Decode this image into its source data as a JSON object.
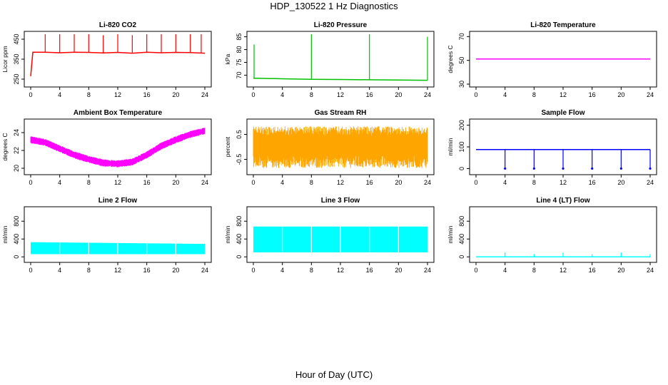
{
  "title": "HDP_130522  1 Hz Diagnostics",
  "xlabel": "Hour of Day (UTC)",
  "chart_data": [
    {
      "type": "line",
      "title": "Li-820 CO2",
      "ylabel": "Licor ppm",
      "color": "#ff0000",
      "xlim": [
        0,
        24
      ],
      "ylim": [
        225,
        475
      ],
      "xticks": [
        0,
        4,
        8,
        12,
        16,
        20,
        24
      ],
      "yticks": [
        250,
        350,
        450
      ],
      "series": [
        {
          "x": [
            0,
            0.3,
            2,
            4,
            6,
            8,
            10,
            12,
            14,
            16,
            18,
            20,
            22,
            24
          ],
          "values": [
            265,
            385,
            385,
            382,
            385,
            384,
            381,
            384,
            380,
            385,
            382,
            384,
            383,
            380
          ]
        }
      ],
      "spikes": {
        "x": [
          2,
          4,
          6,
          8,
          10,
          12,
          14,
          16,
          18,
          20,
          22,
          23.5
        ],
        "values": [
          475,
          475,
          475,
          475,
          470,
          475,
          470,
          475,
          475,
          475,
          475,
          475
        ]
      }
    },
    {
      "type": "line",
      "title": "Li-820 Pressure",
      "ylabel": "kPa",
      "color": "#00c000",
      "xlim": [
        0,
        24
      ],
      "ylim": [
        66.5,
        86
      ],
      "xticks": [
        0,
        4,
        8,
        12,
        16,
        20,
        24
      ],
      "yticks": [
        70,
        75,
        80,
        85
      ],
      "series": [
        {
          "x": [
            0,
            0.5,
            4,
            8,
            12,
            16,
            20,
            24
          ],
          "values": [
            68.8,
            68.8,
            68.6,
            68.4,
            68.3,
            68.2,
            68.1,
            68.0
          ]
        }
      ],
      "spikes": {
        "x": [
          0.1,
          8,
          16,
          24
        ],
        "values": [
          82,
          86,
          86,
          85
        ]
      }
    },
    {
      "type": "line",
      "title": "Li-820 Temperature",
      "ylabel": "degrees C",
      "color": "#ff00ff",
      "xlim": [
        0,
        24
      ],
      "ylim": [
        30,
        72
      ],
      "xticks": [
        0,
        4,
        8,
        12,
        16,
        20,
        24
      ],
      "yticks": [
        30,
        50,
        70
      ],
      "series": [
        {
          "x": [
            0,
            24
          ],
          "values": [
            51.2,
            51.2
          ]
        }
      ]
    },
    {
      "type": "area",
      "title": "Ambient Box Temperature",
      "ylabel": "degrees C",
      "color": "#ff00ff",
      "xlim": [
        0,
        24
      ],
      "ylim": [
        19.6,
        25.2
      ],
      "xticks": [
        0,
        4,
        8,
        12,
        16,
        20,
        24
      ],
      "yticks": [
        20,
        22,
        24
      ],
      "series": [
        {
          "x": [
            0,
            2,
            4,
            6,
            8,
            10,
            12,
            14,
            16,
            18,
            20,
            22,
            24
          ],
          "values": [
            23.2,
            22.9,
            22.2,
            21.5,
            21.0,
            20.6,
            20.5,
            20.7,
            21.5,
            22.5,
            23.2,
            23.8,
            24.2
          ]
        }
      ],
      "band": 0.8
    },
    {
      "type": "area",
      "title": "Gas Stream RH",
      "ylabel": "percent",
      "color": "#ffa500",
      "xlim": [
        0,
        24
      ],
      "ylim": [
        -1.0,
        1.0
      ],
      "xticks": [
        0,
        4,
        8,
        12,
        16,
        20,
        24
      ],
      "yticks": [
        -0.5,
        0.5
      ],
      "series": [
        {
          "x": [
            0,
            24
          ],
          "values": [
            0.0,
            0.0
          ]
        }
      ],
      "band": [
        -0.85,
        0.82
      ]
    },
    {
      "type": "line",
      "title": "Sample Flow",
      "ylabel": "ml/min",
      "color": "#0000ff",
      "xlim": [
        0,
        24
      ],
      "ylim": [
        -15,
        215
      ],
      "xticks": [
        0,
        4,
        8,
        12,
        16,
        20,
        24
      ],
      "yticks": [
        0,
        100,
        200
      ],
      "series": [
        {
          "x": [
            0,
            24
          ],
          "values": [
            88,
            88
          ]
        }
      ],
      "dips": {
        "x": [
          4,
          8,
          12,
          16,
          20,
          24
        ],
        "values": [
          0,
          0,
          0,
          0,
          0,
          0
        ]
      }
    },
    {
      "type": "area",
      "title": "Line 2 Flow",
      "ylabel": "ml/min",
      "color": "#00ffff",
      "xlim": [
        0,
        24
      ],
      "ylim": [
        -60,
        1060
      ],
      "xticks": [
        0,
        4,
        8,
        12,
        16,
        20,
        24
      ],
      "yticks": [
        0,
        400,
        800
      ],
      "series": [
        {
          "x": [
            0,
            24
          ],
          "values": [
            330,
            290
          ]
        }
      ],
      "band_low": 60,
      "gaps": [
        4,
        8,
        12,
        16,
        20
      ]
    },
    {
      "type": "area",
      "title": "Line 3 Flow",
      "ylabel": "ml/min",
      "color": "#00ffff",
      "xlim": [
        0,
        24
      ],
      "ylim": [
        -60,
        1060
      ],
      "xticks": [
        0,
        4,
        8,
        12,
        16,
        20,
        24
      ],
      "yticks": [
        0,
        400,
        800
      ],
      "series": [
        {
          "x": [
            0,
            24
          ],
          "values": [
            680,
            680
          ]
        }
      ],
      "band_low": 100,
      "gaps": [
        4,
        8,
        12,
        16,
        20
      ]
    },
    {
      "type": "line",
      "title": "Line 4 (LT) Flow",
      "ylabel": "ml/min",
      "color": "#00ffff",
      "xlim": [
        0,
        24
      ],
      "ylim": [
        -60,
        1060
      ],
      "xticks": [
        0,
        4,
        8,
        12,
        16,
        20,
        24
      ],
      "yticks": [
        0,
        400,
        800
      ],
      "series": [
        {
          "x": [
            0,
            24
          ],
          "values": [
            0,
            0
          ]
        }
      ],
      "spikes": {
        "x": [
          4,
          8,
          12,
          16,
          20,
          24
        ],
        "values": [
          100,
          60,
          100,
          60,
          100,
          60
        ]
      }
    }
  ]
}
